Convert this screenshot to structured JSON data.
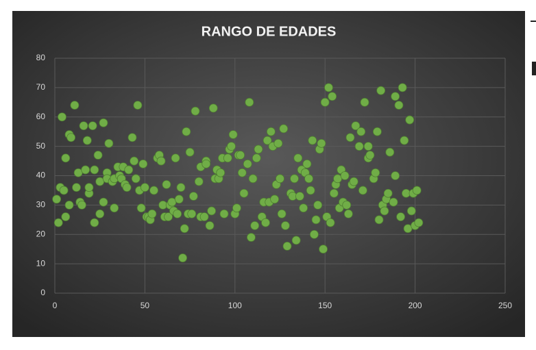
{
  "chart_data": {
    "type": "scatter",
    "title": "RANGO DE EDADES",
    "color": "#70ad47",
    "grid": true,
    "xlim": [
      0,
      250
    ],
    "xticks": [
      0,
      50,
      100,
      150,
      200,
      250
    ],
    "ylim": [
      0,
      80
    ],
    "yticks": [
      0,
      10,
      20,
      30,
      40,
      50,
      60,
      70,
      80
    ],
    "x": [
      1,
      2,
      3,
      4,
      5,
      6,
      6,
      8,
      8,
      9,
      11,
      12,
      13,
      14,
      15,
      16,
      17,
      18,
      19,
      19,
      21,
      22,
      22,
      24,
      25,
      25,
      27,
      27,
      29,
      29,
      30,
      32,
      33,
      33,
      35,
      36,
      37,
      38,
      39,
      40,
      41,
      43,
      44,
      45,
      46,
      47,
      48,
      49,
      50,
      51,
      52,
      53,
      54,
      55,
      57,
      58,
      59,
      60,
      61,
      62,
      63,
      64,
      65,
      66,
      67,
      68,
      69,
      70,
      71,
      72,
      73,
      74,
      75,
      76,
      77,
      78,
      80,
      81,
      81,
      83,
      84,
      84,
      86,
      87,
      88,
      89,
      90,
      91,
      92,
      93,
      94,
      96,
      97,
      98,
      99,
      100,
      101,
      102,
      103,
      104,
      105,
      107,
      108,
      109,
      110,
      111,
      112,
      113,
      115,
      116,
      117,
      118,
      119,
      120,
      121,
      122,
      123,
      124,
      125,
      126,
      127,
      128,
      129,
      131,
      132,
      133,
      134,
      135,
      136,
      137,
      138,
      139,
      140,
      141,
      142,
      143,
      144,
      145,
      146,
      147,
      148,
      149,
      150,
      151,
      152,
      153,
      154,
      155,
      156,
      157,
      158,
      159,
      160,
      161,
      162,
      163,
      164,
      165,
      166,
      167,
      169,
      170,
      171,
      172,
      174,
      174,
      175,
      177,
      178,
      179,
      180,
      181,
      182,
      183,
      184,
      185,
      186,
      188,
      189,
      189,
      191,
      192,
      193,
      194,
      195,
      196,
      197,
      198,
      199,
      200,
      201,
      202
    ],
    "values": [
      32,
      24,
      36,
      60,
      35,
      26,
      46,
      30,
      54,
      53,
      64,
      36,
      41,
      31,
      30,
      57,
      42,
      52,
      34,
      36,
      57,
      24,
      42,
      47,
      27,
      38,
      31,
      58,
      41,
      39,
      51,
      38,
      29,
      39,
      43,
      40,
      39,
      43,
      37,
      36,
      42,
      53,
      45,
      39,
      64,
      35,
      29,
      44,
      36,
      26,
      26,
      25,
      27,
      35,
      46,
      47,
      45,
      30,
      26,
      37,
      26,
      30,
      31,
      28,
      46,
      27,
      32,
      36,
      12,
      22,
      55,
      27,
      48,
      27,
      33,
      62,
      38,
      26,
      43,
      26,
      45,
      44,
      23,
      28,
      63,
      39,
      42,
      39,
      41,
      46,
      27,
      46,
      49,
      50,
      54,
      27,
      29,
      47,
      47,
      41,
      34,
      44,
      65,
      19,
      39,
      23,
      46,
      49,
      26,
      31,
      24,
      52,
      31,
      55,
      50,
      32,
      37,
      51,
      39,
      27,
      56,
      23,
      16,
      34,
      33,
      39,
      18,
      46,
      33,
      42,
      29,
      41,
      44,
      39,
      35,
      52,
      20,
      25,
      30,
      49,
      51,
      15,
      65,
      26,
      70,
      24,
      67,
      34,
      37,
      39,
      29,
      42,
      31,
      40,
      30,
      27,
      53,
      37,
      38,
      57,
      50,
      55,
      35,
      65,
      46,
      50,
      47,
      39,
      41,
      55,
      25,
      69,
      30,
      28,
      32,
      34,
      48,
      31,
      40,
      67,
      64,
      26,
      70,
      52,
      34,
      22,
      59,
      28,
      34,
      23,
      35,
      24
    ]
  }
}
